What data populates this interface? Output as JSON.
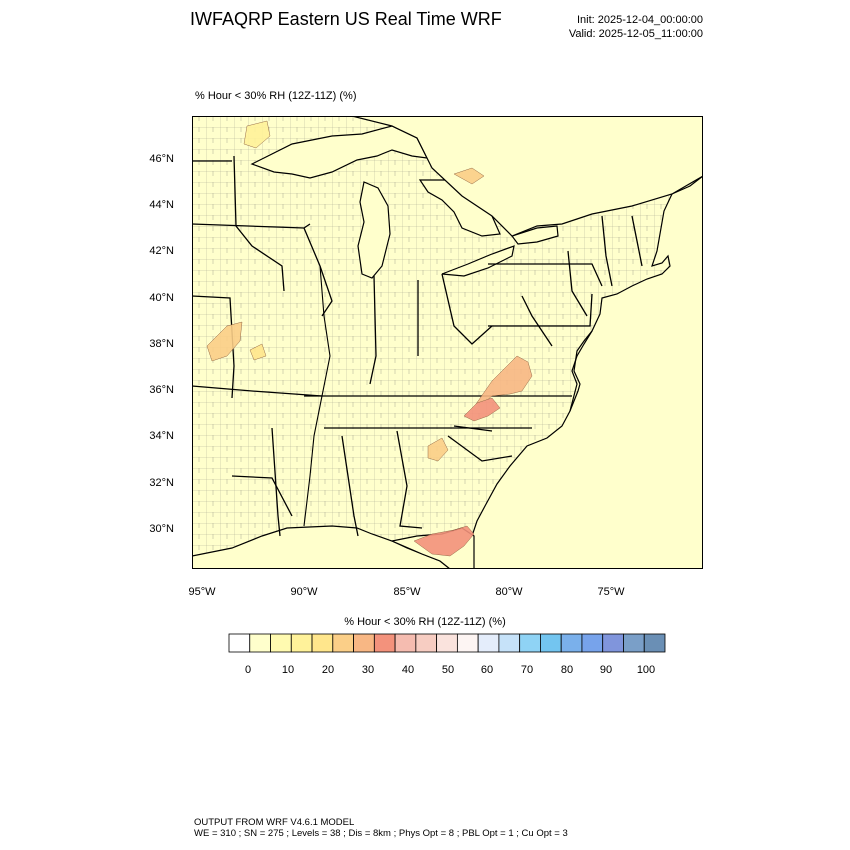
{
  "header": {
    "title": "IWFAQRP Eastern US Real Time WRF",
    "init_line": "Init: 2025-12-04_00:00:00",
    "valid_line": "Valid: 2025-12-05_11:00:00"
  },
  "map": {
    "field_label": "% Hour < 30% RH (12Z-11Z)   (%)",
    "lat_labels": [
      "46°N",
      "44°N",
      "42°N",
      "40°N",
      "38°N",
      "36°N",
      "34°N",
      "32°N",
      "30°N"
    ],
    "lon_labels": [
      "95°W",
      "90°W",
      "85°W",
      "80°W",
      "75°W"
    ],
    "colors": {
      "land": "#ffffcc",
      "water": "#ffffff"
    }
  },
  "colorbar": {
    "title": "% Hour < 30% RH (12Z-11Z)  (%)",
    "tick_labels": [
      "0",
      "10",
      "20",
      "30",
      "40",
      "50",
      "60",
      "70",
      "80",
      "90",
      "100"
    ],
    "colors": [
      "#ffffff",
      "#ffffcc",
      "#fffab0",
      "#fff29a",
      "#ffe68c",
      "#fbcf88",
      "#f8b784",
      "#f3927c",
      "#f5bcb0",
      "#f7cdc2",
      "#fae3dd",
      "#fdf5f3",
      "#e4edfb",
      "#c6e2f9",
      "#8fd3f5",
      "#73c5f0",
      "#7ab0eb",
      "#77a3eb",
      "#8095dc",
      "#7a9fc8",
      "#6a8fb5"
    ]
  },
  "footer": {
    "line1": "OUTPUT FROM WRF V4.6.1 MODEL",
    "line2": "WE = 310 ; SN = 275 ; Levels = 38 ; Dis = 8km ; Phys Opt = 8 ; PBL Opt = 1 ; Cu Opt = 3"
  }
}
